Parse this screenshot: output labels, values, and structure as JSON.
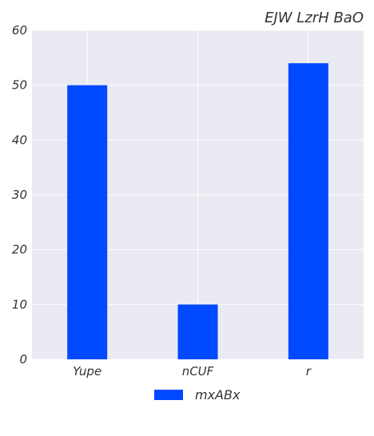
{
  "chart_data": {
    "type": "bar",
    "title": "EJW LzrH BaO",
    "xlabel": "",
    "ylabel": "",
    "categories": [
      "Yupe",
      "nCUF",
      "r"
    ],
    "series": [
      {
        "name": "mxABx",
        "values": [
          50,
          10,
          54
        ],
        "color": "#0049FF"
      }
    ],
    "ylim": [
      0,
      60
    ],
    "yticks": [
      0,
      10,
      20,
      30,
      40,
      50,
      60
    ],
    "grid": true,
    "legend": "bottom-center"
  },
  "colors": {
    "plot_background": "#EAEAF2",
    "grid": "#FFFFFF",
    "bar": "#0049FF"
  }
}
